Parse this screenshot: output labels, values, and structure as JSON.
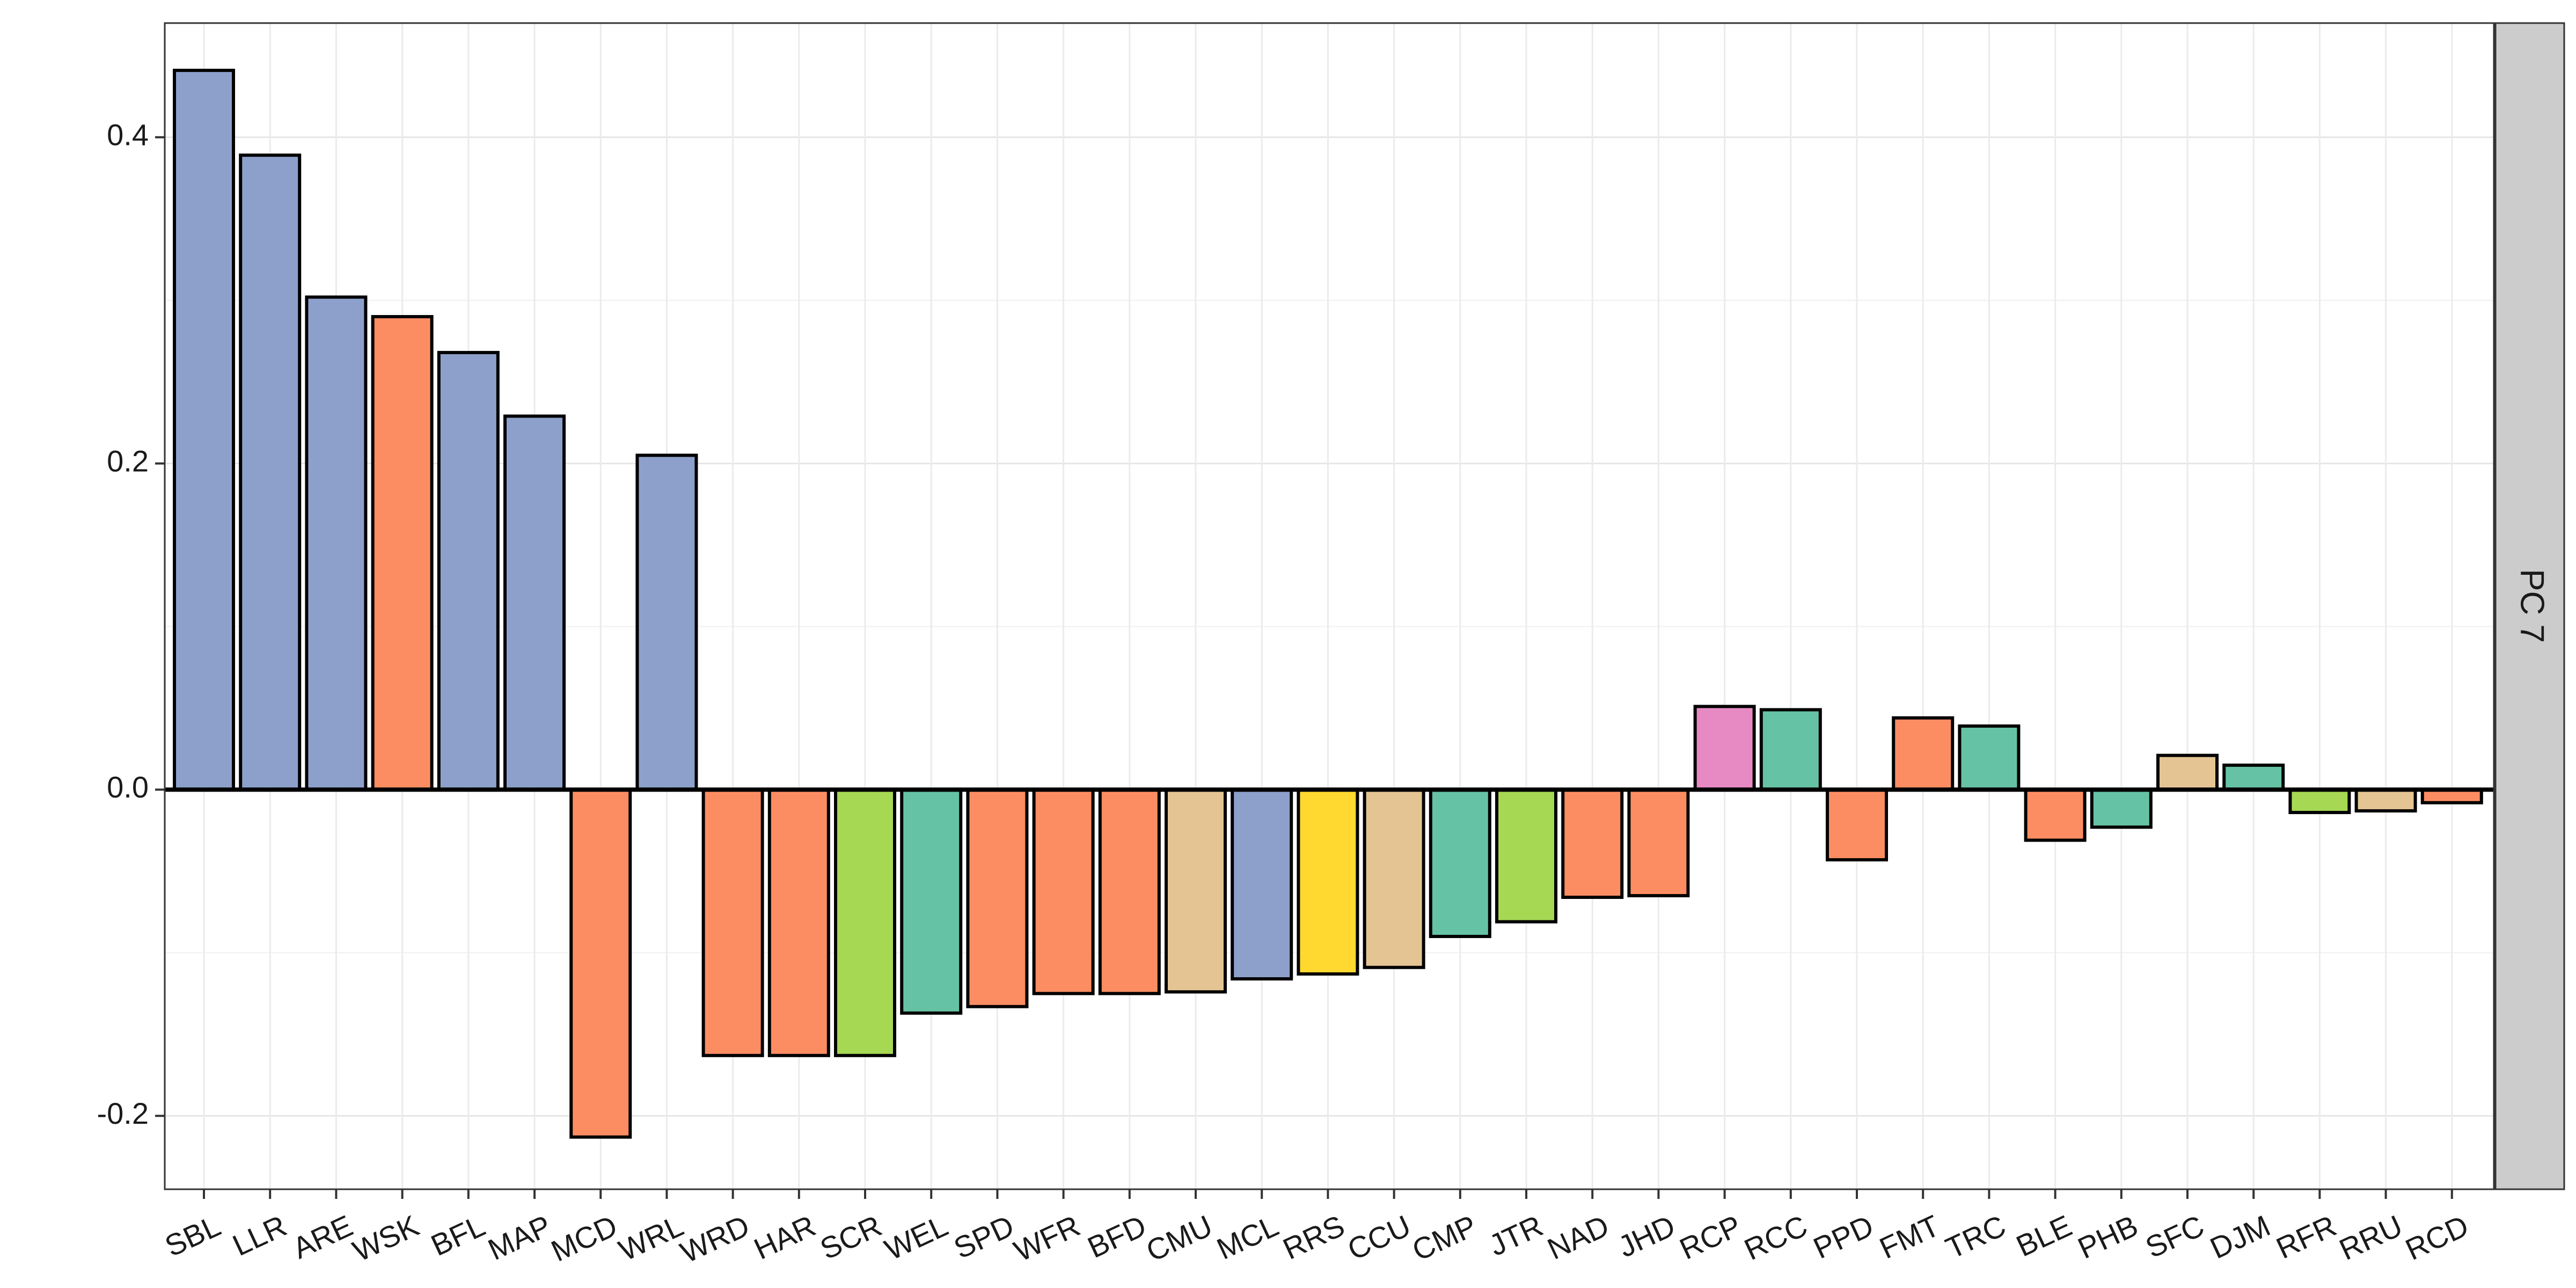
{
  "chart_data": {
    "type": "bar",
    "facet_label": "PC 7",
    "title": "",
    "xlabel": "",
    "ylabel": "",
    "ylim": [
      -0.245,
      0.47
    ],
    "yticks": [
      -0.2,
      0.0,
      0.2,
      0.4
    ],
    "ytick_labels": [
      "-0.2",
      "0.0",
      "0.2",
      "0.4"
    ],
    "grid": true,
    "legend": "none",
    "categories": [
      "SBL",
      "LLR",
      "ARE",
      "WSK",
      "BFL",
      "MAP",
      "MCD",
      "WRL",
      "WRD",
      "HAR",
      "SCR",
      "WEL",
      "SPD",
      "WFR",
      "BFD",
      "CMU",
      "MCL",
      "RRS",
      "CCU",
      "CMP",
      "JTR",
      "NAD",
      "JHD",
      "RCP",
      "RCC",
      "PPD",
      "FMT",
      "TRC",
      "BLE",
      "PHB",
      "SFC",
      "DJM",
      "RFR",
      "RRU",
      "RCD"
    ],
    "values": [
      0.441,
      0.389,
      0.302,
      0.29,
      0.268,
      0.229,
      -0.213,
      0.205,
      -0.163,
      -0.163,
      -0.163,
      -0.137,
      -0.133,
      -0.125,
      -0.125,
      -0.124,
      -0.116,
      -0.113,
      -0.109,
      -0.09,
      -0.081,
      -0.066,
      -0.065,
      0.051,
      0.049,
      -0.043,
      0.044,
      0.039,
      -0.031,
      -0.023,
      0.021,
      0.015,
      -0.014,
      -0.013,
      -0.008
    ],
    "bar_colors": [
      "#8da0cb",
      "#8da0cb",
      "#8da0cb",
      "#fc8d62",
      "#8da0cb",
      "#8da0cb",
      "#fc8d62",
      "#8da0cb",
      "#fc8d62",
      "#fc8d62",
      "#a6d854",
      "#66c2a5",
      "#fc8d62",
      "#fc8d62",
      "#fc8d62",
      "#e5c494",
      "#8da0cb",
      "#ffd92f",
      "#e5c494",
      "#66c2a5",
      "#a6d854",
      "#fc8d62",
      "#fc8d62",
      "#e78ac3",
      "#66c2a5",
      "#fc8d62",
      "#fc8d62",
      "#66c2a5",
      "#fc8d62",
      "#66c2a5",
      "#e5c494",
      "#66c2a5",
      "#a6d854",
      "#e5c494",
      "#fc8d62"
    ]
  }
}
